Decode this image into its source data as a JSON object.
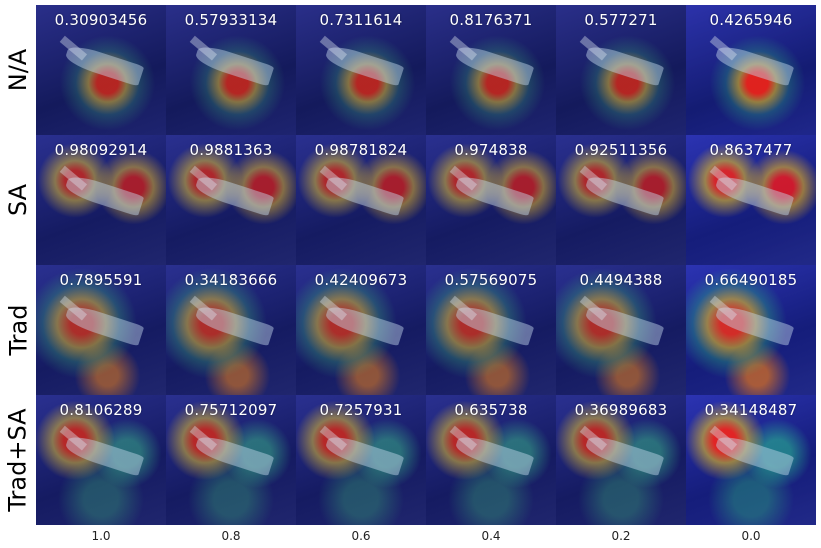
{
  "rows": [
    {
      "label": "N/A",
      "scores": [
        "0.30903456",
        "0.57933134",
        "0.7311614",
        "0.8176371",
        "0.577271",
        "0.4265946"
      ]
    },
    {
      "label": "SA",
      "scores": [
        "0.98092914",
        "0.9881363",
        "0.98781824",
        "0.974838",
        "0.92511356",
        "0.8637477"
      ]
    },
    {
      "label": "Trad",
      "scores": [
        "0.7895591",
        "0.34183666",
        "0.42409673",
        "0.57569075",
        "0.4494388",
        "0.66490185"
      ]
    },
    {
      "label": "Trad+SA",
      "scores": [
        "0.8106289",
        "0.75712097",
        "0.7257931",
        "0.635738",
        "0.36989683",
        "0.34148487"
      ]
    }
  ],
  "columns": [
    "1.0",
    "0.8",
    "0.6",
    "0.4",
    "0.2",
    "0.0"
  ]
}
